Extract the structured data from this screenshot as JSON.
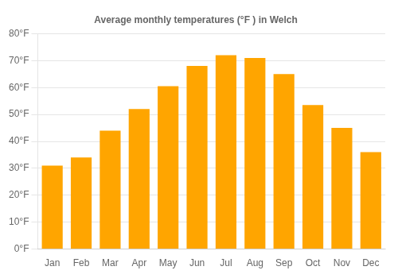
{
  "chart_data": {
    "type": "bar",
    "title": "Average monthly temperatures (°F ) in Welch",
    "categories": [
      "Jan",
      "Feb",
      "Mar",
      "Apr",
      "May",
      "Jun",
      "Jul",
      "Aug",
      "Sep",
      "Oct",
      "Nov",
      "Dec"
    ],
    "values": [
      31,
      34,
      44,
      52,
      60.5,
      68,
      72,
      71,
      65,
      53.5,
      45,
      36
    ],
    "color": "#FFA500",
    "ylim": [
      0,
      80
    ],
    "yticks": [
      {
        "value": 0,
        "label": "0°F"
      },
      {
        "value": 10,
        "label": "10°F"
      },
      {
        "value": 20,
        "label": "20°F"
      },
      {
        "value": 30,
        "label": "30°F"
      },
      {
        "value": 40,
        "label": "40°F"
      },
      {
        "value": 50,
        "label": "50°F"
      },
      {
        "value": 60,
        "label": "60°F"
      },
      {
        "value": 70,
        "label": "70°F"
      },
      {
        "value": 80,
        "label": "80°F"
      }
    ],
    "grid": true
  }
}
